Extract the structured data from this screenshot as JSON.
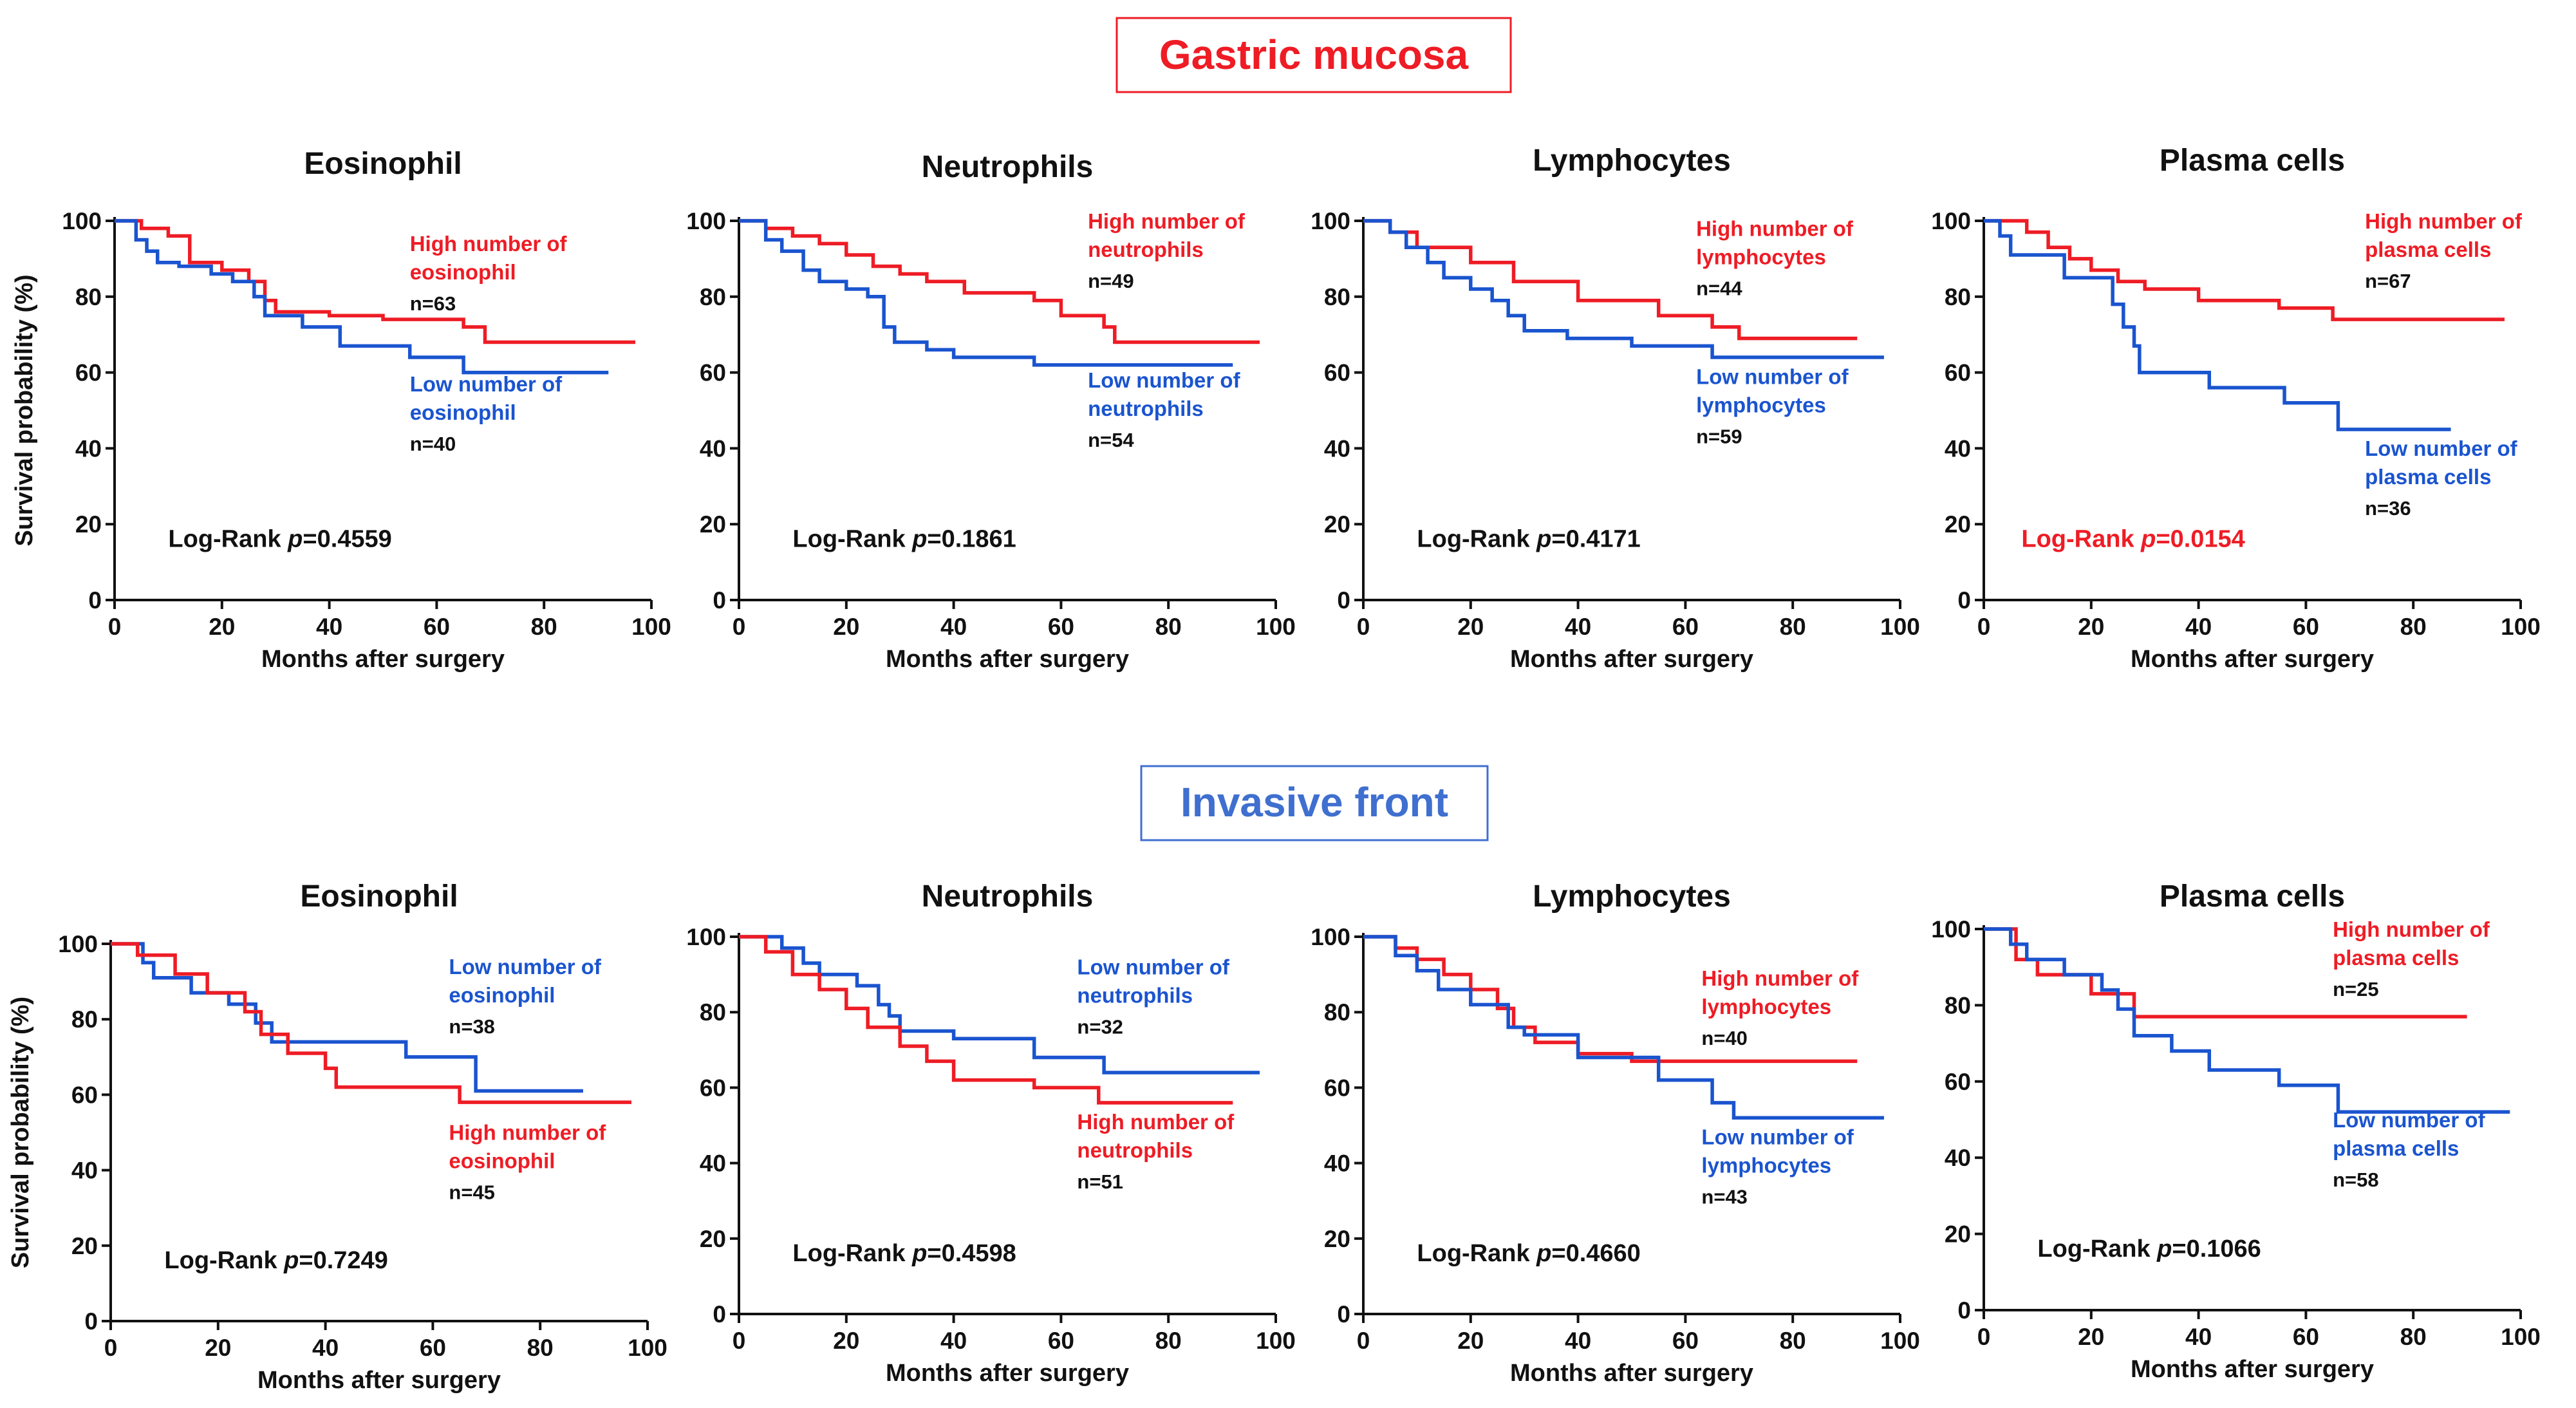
{
  "colors": {
    "high": "#ee1c25",
    "low": "#1a54cf",
    "axis": "#111111"
  },
  "sections": [
    {
      "title": "Gastric mucosa",
      "color": "#ee1c25"
    },
    {
      "title": "Invasive front",
      "color": "#3f6fcf"
    }
  ],
  "chart_data": [
    {
      "type": "line",
      "kind": "kaplan-meier",
      "section": "Gastric mucosa",
      "title": "Eosinophil",
      "xlabel": "Months after surgery",
      "ylabel": "Survival probability (%)",
      "xlim": [
        0,
        100
      ],
      "ylim": [
        0,
        100
      ],
      "xticks": [
        0,
        20,
        40,
        60,
        80,
        100
      ],
      "yticks": [
        0,
        20,
        40,
        60,
        80,
        100
      ],
      "logrank": {
        "prefix": "Log-Rank ",
        "p_symbol": "p",
        "p_value": "=0.4559",
        "significant": false
      },
      "series": [
        {
          "name": "High number of eosinophil",
          "group": "high",
          "label_lines": [
            "High number of",
            "eosinophil"
          ],
          "n_label": "n=63",
          "x": [
            0,
            5,
            10,
            14,
            20,
            25,
            28,
            30,
            40,
            50,
            65,
            69,
            97
          ],
          "y": [
            100,
            98,
            96,
            89,
            87,
            84,
            79,
            76,
            75,
            74,
            72,
            68,
            68
          ]
        },
        {
          "name": "Low number of eosinophil",
          "group": "low",
          "label_lines": [
            "Low number of",
            "eosinophil"
          ],
          "n_label": "n=40",
          "x": [
            0,
            4,
            6,
            8,
            12,
            18,
            22,
            26,
            28,
            35,
            42,
            55,
            65,
            92
          ],
          "y": [
            100,
            95,
            92,
            89,
            88,
            86,
            84,
            80,
            75,
            72,
            67,
            64,
            60,
            60
          ]
        }
      ]
    },
    {
      "type": "line",
      "kind": "kaplan-meier",
      "section": "Gastric mucosa",
      "title": "Neutrophils",
      "xlabel": "Months after surgery",
      "ylabel": "",
      "xlim": [
        0,
        100
      ],
      "ylim": [
        0,
        100
      ],
      "xticks": [
        0,
        20,
        40,
        60,
        80,
        100
      ],
      "yticks": [
        0,
        20,
        40,
        60,
        80,
        100
      ],
      "logrank": {
        "prefix": "Log-Rank ",
        "p_symbol": "p",
        "p_value": "=0.1861",
        "significant": false
      },
      "series": [
        {
          "name": "High number of neutrophils",
          "group": "high",
          "label_lines": [
            "High number of",
            "neutrophils"
          ],
          "n_label": "n=49",
          "x": [
            0,
            5,
            10,
            15,
            20,
            25,
            30,
            35,
            42,
            55,
            60,
            68,
            70,
            97
          ],
          "y": [
            100,
            98,
            96,
            94,
            91,
            88,
            86,
            84,
            81,
            79,
            75,
            72,
            68,
            68
          ]
        },
        {
          "name": "Low number of neutrophils",
          "group": "low",
          "label_lines": [
            "Low number of",
            "neutrophils"
          ],
          "n_label": "n=54",
          "x": [
            0,
            5,
            8,
            12,
            15,
            20,
            24,
            27,
            29,
            35,
            40,
            55,
            92
          ],
          "y": [
            100,
            95,
            92,
            87,
            84,
            82,
            80,
            72,
            68,
            66,
            64,
            62,
            62
          ]
        }
      ]
    },
    {
      "type": "line",
      "kind": "kaplan-meier",
      "section": "Gastric mucosa",
      "title": "Lymphocytes",
      "xlabel": "Months after surgery",
      "ylabel": "",
      "xlim": [
        0,
        100
      ],
      "ylim": [
        0,
        100
      ],
      "xticks": [
        0,
        20,
        40,
        60,
        80,
        100
      ],
      "yticks": [
        0,
        20,
        40,
        60,
        80,
        100
      ],
      "logrank": {
        "prefix": "Log-Rank ",
        "p_symbol": "p",
        "p_value": "=0.4171",
        "significant": false
      },
      "series": [
        {
          "name": "High number of lymphocytes",
          "group": "high",
          "label_lines": [
            "High number of",
            "lymphocytes"
          ],
          "n_label": "n=44",
          "x": [
            0,
            5,
            10,
            20,
            28,
            40,
            55,
            65,
            70,
            92
          ],
          "y": [
            100,
            97,
            93,
            89,
            84,
            79,
            75,
            72,
            69,
            69
          ]
        },
        {
          "name": "Low number of lymphocytes",
          "group": "low",
          "label_lines": [
            "Low number of",
            "lymphocytes"
          ],
          "n_label": "n=59",
          "x": [
            0,
            5,
            8,
            12,
            15,
            20,
            24,
            27,
            30,
            38,
            50,
            65,
            97
          ],
          "y": [
            100,
            97,
            93,
            89,
            85,
            82,
            79,
            75,
            71,
            69,
            67,
            64,
            64
          ]
        }
      ]
    },
    {
      "type": "line",
      "kind": "kaplan-meier",
      "section": "Gastric mucosa",
      "title": "Plasma cells",
      "xlabel": "Months after surgery",
      "ylabel": "",
      "xlim": [
        0,
        100
      ],
      "ylim": [
        0,
        100
      ],
      "xticks": [
        0,
        20,
        40,
        60,
        80,
        100
      ],
      "yticks": [
        0,
        20,
        40,
        60,
        80,
        100
      ],
      "logrank": {
        "prefix": "Log-Rank ",
        "p_symbol": "p",
        "p_value": "=0.0154",
        "significant": true
      },
      "series": [
        {
          "name": "High number of plasma cells",
          "group": "high",
          "label_lines": [
            "High number of",
            "plasma cells"
          ],
          "n_label": "n=67",
          "x": [
            0,
            8,
            12,
            16,
            20,
            25,
            30,
            40,
            55,
            65,
            97
          ],
          "y": [
            100,
            97,
            93,
            90,
            87,
            84,
            82,
            79,
            77,
            74,
            74
          ]
        },
        {
          "name": "Low number of plasma cells",
          "group": "low",
          "label_lines": [
            "Low number of",
            "plasma cells"
          ],
          "n_label": "n=36",
          "x": [
            0,
            3,
            5,
            15,
            24,
            26,
            28,
            29,
            42,
            56,
            66,
            87
          ],
          "y": [
            100,
            96,
            91,
            85,
            78,
            72,
            67,
            60,
            56,
            52,
            45,
            45
          ]
        }
      ]
    },
    {
      "type": "line",
      "kind": "kaplan-meier",
      "section": "Invasive front",
      "title": "Eosinophil",
      "xlabel": "Months after surgery",
      "ylabel": "Survival probability (%)",
      "xlim": [
        0,
        100
      ],
      "ylim": [
        0,
        100
      ],
      "xticks": [
        0,
        20,
        40,
        60,
        80,
        100
      ],
      "yticks": [
        0,
        20,
        40,
        60,
        80,
        100
      ],
      "logrank": {
        "prefix": "Log-Rank ",
        "p_symbol": "p",
        "p_value": "=0.7249",
        "significant": false
      },
      "series": [
        {
          "name": "Low number of eosinophil",
          "group": "low",
          "label_lines": [
            "Low number of",
            "eosinophil"
          ],
          "n_label": "n=38",
          "x": [
            0,
            6,
            8,
            15,
            22,
            27,
            30,
            55,
            68,
            88
          ],
          "y": [
            100,
            95,
            91,
            87,
            84,
            79,
            74,
            70,
            61,
            61
          ]
        },
        {
          "name": "High number of eosinophil",
          "group": "high",
          "label_lines": [
            "High number of",
            "eosinophil"
          ],
          "n_label": "n=45",
          "x": [
            0,
            5,
            12,
            18,
            25,
            28,
            33,
            40,
            42,
            65,
            97
          ],
          "y": [
            100,
            97,
            92,
            87,
            82,
            76,
            71,
            67,
            62,
            58,
            58
          ]
        }
      ]
    },
    {
      "type": "line",
      "kind": "kaplan-meier",
      "section": "Invasive front",
      "title": "Neutrophils",
      "xlabel": "Months after surgery",
      "ylabel": "",
      "xlim": [
        0,
        100
      ],
      "ylim": [
        0,
        100
      ],
      "xticks": [
        0,
        20,
        40,
        60,
        80,
        100
      ],
      "yticks": [
        0,
        20,
        40,
        60,
        80,
        100
      ],
      "logrank": {
        "prefix": "Log-Rank ",
        "p_symbol": "p",
        "p_value": "=0.4598",
        "significant": false
      },
      "series": [
        {
          "name": "Low number of neutrophils",
          "group": "low",
          "label_lines": [
            "Low number of",
            "neutrophils"
          ],
          "n_label": "n=32",
          "x": [
            0,
            8,
            12,
            15,
            22,
            26,
            28,
            30,
            40,
            55,
            68,
            97
          ],
          "y": [
            100,
            97,
            93,
            90,
            87,
            82,
            79,
            75,
            73,
            68,
            64,
            64
          ]
        },
        {
          "name": "High number of neutrophils",
          "group": "high",
          "label_lines": [
            "High number of",
            "neutrophils"
          ],
          "n_label": "n=51",
          "x": [
            0,
            5,
            10,
            15,
            20,
            24,
            30,
            35,
            40,
            55,
            67,
            92
          ],
          "y": [
            100,
            96,
            90,
            86,
            81,
            76,
            71,
            67,
            62,
            60,
            56,
            56
          ]
        }
      ]
    },
    {
      "type": "line",
      "kind": "kaplan-meier",
      "section": "Invasive front",
      "title": "Lymphocytes",
      "xlabel": "Months after surgery",
      "ylabel": "",
      "xlim": [
        0,
        100
      ],
      "ylim": [
        0,
        100
      ],
      "xticks": [
        0,
        20,
        40,
        60,
        80,
        100
      ],
      "yticks": [
        0,
        20,
        40,
        60,
        80,
        100
      ],
      "logrank": {
        "prefix": "Log-Rank ",
        "p_symbol": "p",
        "p_value": "=0.4660",
        "significant": false
      },
      "series": [
        {
          "name": "High number of lymphocytes",
          "group": "high",
          "label_lines": [
            "High number of",
            "lymphocytes"
          ],
          "n_label": "n=40",
          "x": [
            0,
            6,
            10,
            15,
            20,
            25,
            28,
            32,
            40,
            50,
            92
          ],
          "y": [
            100,
            97,
            94,
            90,
            86,
            81,
            76,
            72,
            69,
            67,
            67
          ]
        },
        {
          "name": "Low number of lymphocytes",
          "group": "low",
          "label_lines": [
            "Low number of",
            "lymphocytes"
          ],
          "n_label": "n=43",
          "x": [
            0,
            6,
            10,
            14,
            20,
            27,
            30,
            40,
            55,
            65,
            69,
            97
          ],
          "y": [
            100,
            95,
            91,
            86,
            82,
            76,
            74,
            68,
            62,
            56,
            52,
            52
          ]
        }
      ]
    },
    {
      "type": "line",
      "kind": "kaplan-meier",
      "section": "Invasive front",
      "title": "Plasma cells",
      "xlabel": "Months after surgery",
      "ylabel": "",
      "xlim": [
        0,
        100
      ],
      "ylim": [
        0,
        100
      ],
      "xticks": [
        0,
        20,
        40,
        60,
        80,
        100
      ],
      "yticks": [
        0,
        20,
        40,
        60,
        80,
        100
      ],
      "logrank": {
        "prefix": "Log-Rank ",
        "p_symbol": "p",
        "p_value": "=0.1066",
        "significant": false
      },
      "series": [
        {
          "name": "High number of plasma cells",
          "group": "high",
          "label_lines": [
            "High number of",
            "plasma cells"
          ],
          "n_label": "n=25",
          "x": [
            0,
            6,
            10,
            20,
            28,
            90
          ],
          "y": [
            100,
            92,
            88,
            83,
            77,
            77
          ]
        },
        {
          "name": "Low number of plasma cells",
          "group": "low",
          "label_lines": [
            "Low number of",
            "plasma cells"
          ],
          "n_label": "n=58",
          "x": [
            0,
            5,
            8,
            15,
            22,
            25,
            28,
            35,
            42,
            55,
            66,
            98
          ],
          "y": [
            100,
            96,
            92,
            88,
            84,
            79,
            72,
            68,
            63,
            59,
            52,
            52
          ]
        }
      ]
    }
  ]
}
